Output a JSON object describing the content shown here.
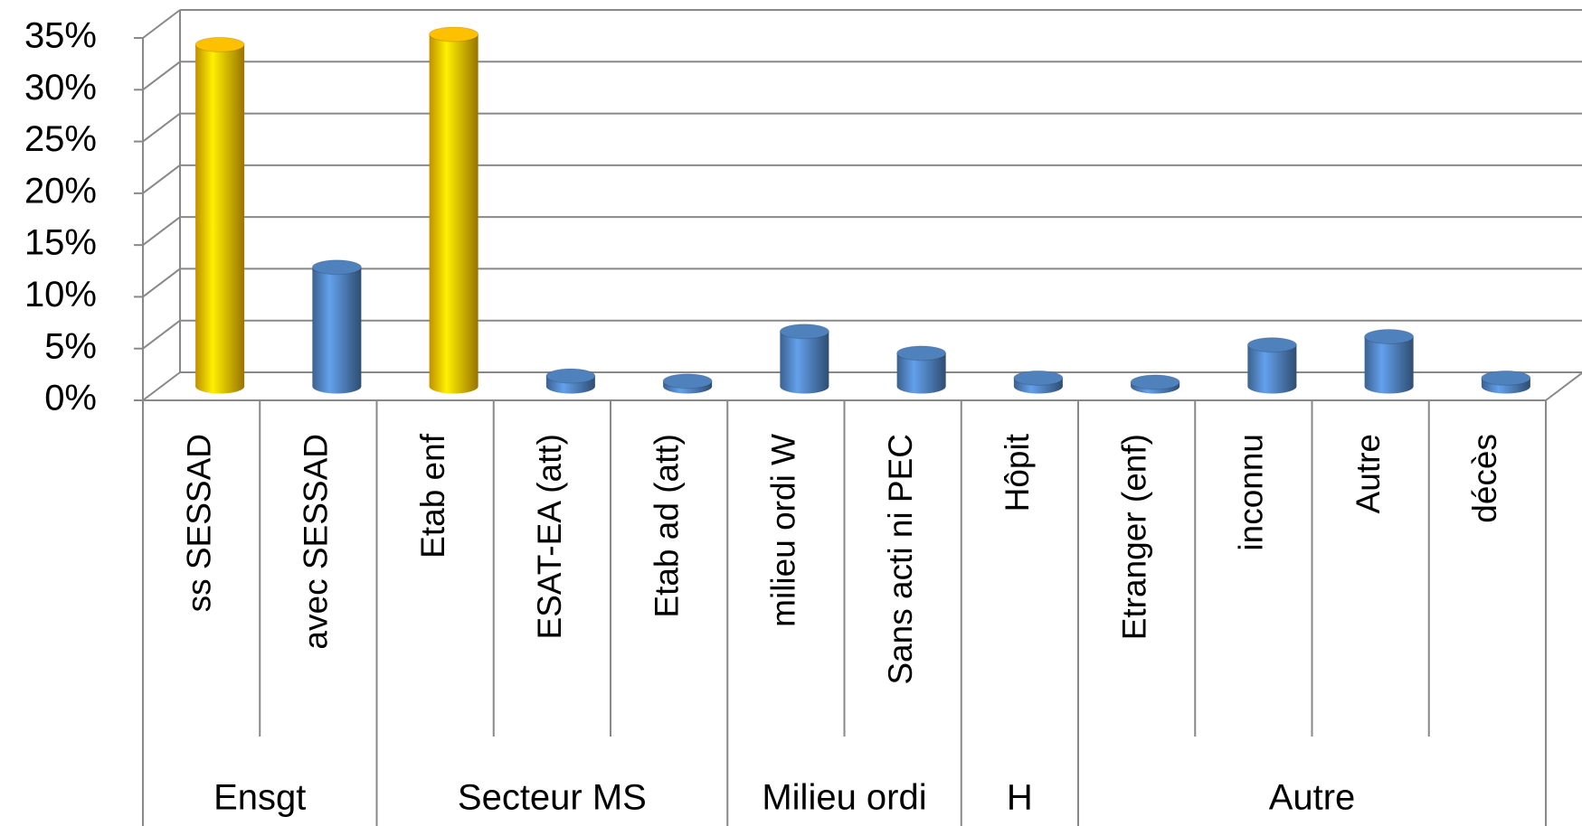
{
  "chart_data": {
    "type": "bar3d",
    "groups": [
      {
        "name": "Ensgt",
        "categories": [
          "ss SESSAD",
          "avec SESSAD"
        ]
      },
      {
        "name": "Secteur MS",
        "categories": [
          "Etab enf",
          "ESAT-EA (att)",
          "Etab ad (att)"
        ]
      },
      {
        "name": "Milieu ordi",
        "categories": [
          "milieu ordi W",
          "Sans acti ni PEC"
        ]
      },
      {
        "name": "H",
        "categories": [
          "Hôpit"
        ]
      },
      {
        "name": "Autre",
        "categories": [
          "Etranger (enf)",
          "inconnu",
          "Autre",
          "décès"
        ]
      }
    ],
    "values": [
      33,
      11.5,
      34,
      1,
      0.5,
      5.3,
      3.2,
      0.8,
      0.4,
      4,
      4.8,
      0.8
    ],
    "colors": [
      "#ffc000",
      "#4f81bd",
      "#ffc000",
      "#4f81bd",
      "#4f81bd",
      "#4f81bd",
      "#4f81bd",
      "#4f81bd",
      "#4f81bd",
      "#4f81bd",
      "#4f81bd",
      "#4f81bd"
    ],
    "ylim": [
      0,
      35
    ],
    "yticks": [
      {
        "value": 0,
        "label": "0%"
      },
      {
        "value": 5,
        "label": "5%"
      },
      {
        "value": 10,
        "label": "10%"
      },
      {
        "value": 15,
        "label": "15%"
      },
      {
        "value": 20,
        "label": "20%"
      },
      {
        "value": 25,
        "label": "25%"
      },
      {
        "value": 30,
        "label": "30%"
      },
      {
        "value": 35,
        "label": "35%"
      }
    ],
    "grid": true
  }
}
